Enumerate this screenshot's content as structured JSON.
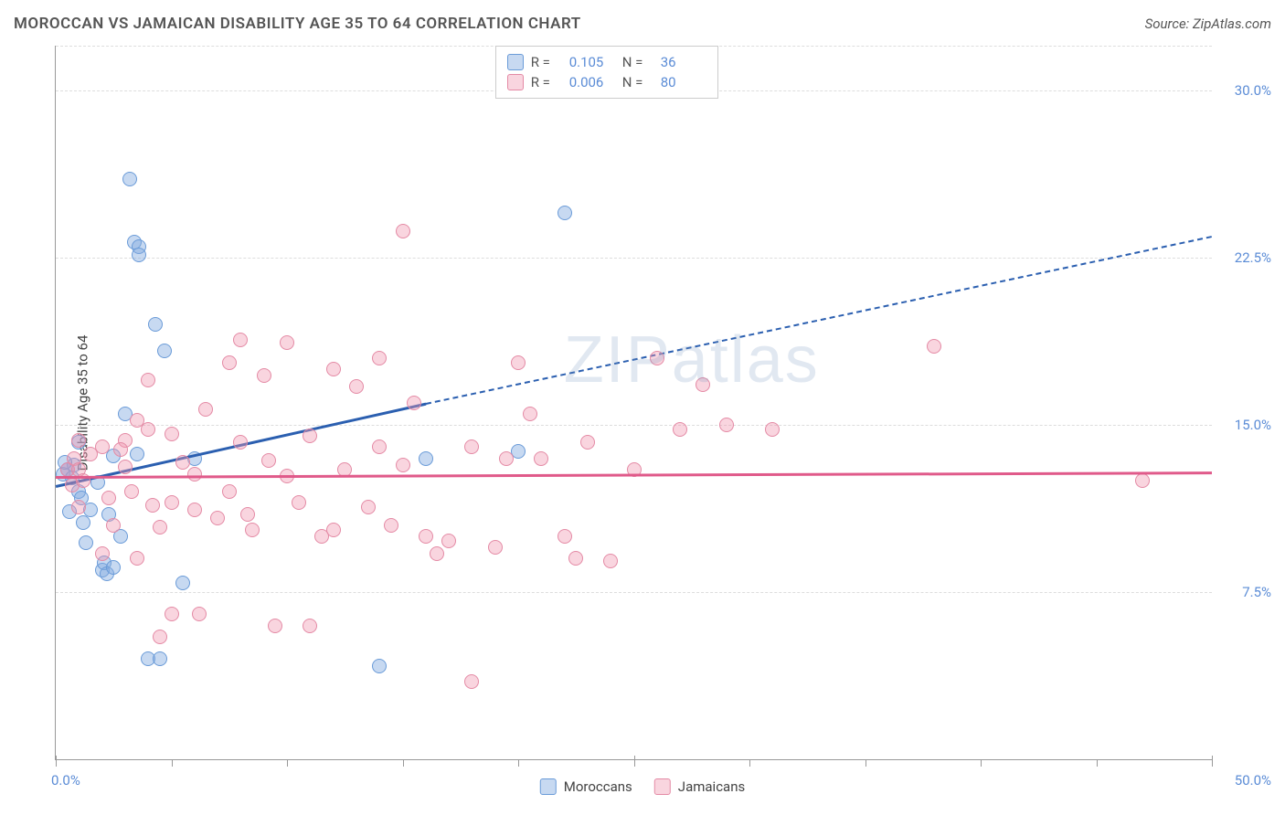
{
  "header": {
    "title": "MOROCCAN VS JAMAICAN DISABILITY AGE 35 TO 64 CORRELATION CHART",
    "source": "Source: ZipAtlas.com"
  },
  "watermark": "ZIPatlas",
  "chart": {
    "type": "scatter",
    "ylabel": "Disability Age 35 to 64",
    "xlim": [
      0,
      50
    ],
    "ylim": [
      0,
      32
    ],
    "background_color": "#ffffff",
    "grid_color": "#dddddd",
    "axis_color": "#999999",
    "yticks": [
      {
        "value": 7.5,
        "label": "7.5%"
      },
      {
        "value": 15.0,
        "label": "15.0%"
      },
      {
        "value": 22.5,
        "label": "22.5%"
      },
      {
        "value": 30.0,
        "label": "30.0%"
      }
    ],
    "xticks_major": [
      0,
      25,
      50
    ],
    "xticks_minor": [
      5,
      10,
      15,
      20,
      30,
      35,
      40,
      45
    ],
    "xtick_label_left": "0.0%",
    "xtick_label_right": "50.0%",
    "label_fontsize": 15,
    "tick_color": "#5b8cd6",
    "point_radius": 8,
    "series": [
      {
        "name": "Moroccans",
        "fill_color": "rgba(130,170,225,0.45)",
        "stroke_color": "#6a9bd8",
        "line_color": "#2b5fb0",
        "R": "0.105",
        "N": "36",
        "regression": {
          "x1": 0,
          "y1": 12.3,
          "x2_solid": 16,
          "y2_solid": 16.0,
          "x2_dash": 50,
          "y2_dash": 23.5
        },
        "points": [
          [
            0.3,
            12.8
          ],
          [
            0.5,
            13.0
          ],
          [
            0.6,
            11.1
          ],
          [
            0.7,
            12.6
          ],
          [
            0.8,
            13.2
          ],
          [
            1.0,
            14.2
          ],
          [
            1.0,
            12.0
          ],
          [
            1.1,
            11.7
          ],
          [
            1.2,
            10.6
          ],
          [
            1.5,
            11.2
          ],
          [
            2.0,
            8.5
          ],
          [
            2.1,
            8.8
          ],
          [
            2.2,
            8.3
          ],
          [
            2.5,
            8.6
          ],
          [
            2.3,
            11.0
          ],
          [
            2.5,
            13.6
          ],
          [
            3.0,
            15.5
          ],
          [
            3.2,
            26.0
          ],
          [
            3.4,
            23.2
          ],
          [
            3.6,
            23.0
          ],
          [
            3.6,
            22.6
          ],
          [
            3.5,
            13.7
          ],
          [
            4.0,
            4.5
          ],
          [
            4.3,
            19.5
          ],
          [
            4.5,
            4.5
          ],
          [
            4.7,
            18.3
          ],
          [
            5.5,
            7.9
          ],
          [
            6.0,
            13.5
          ],
          [
            14.0,
            4.2
          ],
          [
            16.0,
            13.5
          ],
          [
            20.0,
            13.8
          ],
          [
            22.0,
            24.5
          ],
          [
            0.4,
            13.3
          ],
          [
            1.3,
            9.7
          ],
          [
            2.8,
            10.0
          ],
          [
            1.8,
            12.4
          ]
        ]
      },
      {
        "name": "Jamaicans",
        "fill_color": "rgba(240,150,175,0.40)",
        "stroke_color": "#e48aa5",
        "line_color": "#e05a8a",
        "R": "0.006",
        "N": "80",
        "regression": {
          "x1": 0,
          "y1": 12.7,
          "x2_solid": 50,
          "y2_solid": 12.9,
          "x2_dash": 50,
          "y2_dash": 12.9
        },
        "points": [
          [
            0.5,
            13.0
          ],
          [
            0.7,
            12.3
          ],
          [
            0.8,
            13.5
          ],
          [
            1.0,
            14.3
          ],
          [
            1.0,
            13.0
          ],
          [
            1.2,
            12.5
          ],
          [
            1.5,
            13.7
          ],
          [
            2.0,
            14.0
          ],
          [
            2.3,
            11.7
          ],
          [
            2.5,
            10.5
          ],
          [
            3.0,
            14.3
          ],
          [
            3.0,
            13.1
          ],
          [
            3.3,
            12.0
          ],
          [
            3.5,
            15.2
          ],
          [
            4.0,
            14.8
          ],
          [
            4.2,
            11.4
          ],
          [
            4.5,
            10.4
          ],
          [
            5.0,
            11.5
          ],
          [
            5.0,
            14.6
          ],
          [
            5.5,
            13.3
          ],
          [
            6.0,
            12.8
          ],
          [
            6.0,
            11.2
          ],
          [
            6.5,
            15.7
          ],
          [
            7.0,
            10.8
          ],
          [
            7.5,
            12.0
          ],
          [
            8.0,
            18.8
          ],
          [
            8.0,
            14.2
          ],
          [
            8.3,
            11.0
          ],
          [
            8.5,
            10.3
          ],
          [
            9.0,
            17.2
          ],
          [
            9.2,
            13.4
          ],
          [
            9.5,
            6.0
          ],
          [
            10.0,
            12.7
          ],
          [
            10.0,
            18.7
          ],
          [
            10.5,
            11.5
          ],
          [
            11.0,
            14.5
          ],
          [
            11.5,
            10.0
          ],
          [
            12.0,
            17.5
          ],
          [
            12.0,
            10.3
          ],
          [
            12.5,
            13.0
          ],
          [
            13.0,
            16.7
          ],
          [
            13.5,
            11.3
          ],
          [
            14.0,
            18.0
          ],
          [
            14.0,
            14.0
          ],
          [
            14.5,
            10.5
          ],
          [
            15.0,
            23.7
          ],
          [
            15.0,
            13.2
          ],
          [
            15.5,
            16.0
          ],
          [
            16.0,
            10.0
          ],
          [
            16.5,
            9.2
          ],
          [
            17.0,
            9.8
          ],
          [
            18.0,
            14.0
          ],
          [
            18.0,
            3.5
          ],
          [
            19.0,
            9.5
          ],
          [
            19.5,
            13.5
          ],
          [
            20.0,
            17.8
          ],
          [
            20.5,
            15.5
          ],
          [
            21.0,
            13.5
          ],
          [
            22.0,
            10.0
          ],
          [
            22.5,
            9.0
          ],
          [
            23.0,
            14.2
          ],
          [
            24.0,
            8.9
          ],
          [
            25.0,
            13.0
          ],
          [
            26.0,
            18.0
          ],
          [
            27.0,
            14.8
          ],
          [
            28.0,
            16.8
          ],
          [
            29.0,
            15.0
          ],
          [
            31.0,
            14.8
          ],
          [
            38.0,
            18.5
          ],
          [
            47.0,
            12.5
          ],
          [
            4.5,
            5.5
          ],
          [
            5.0,
            6.5
          ],
          [
            3.5,
            9.0
          ],
          [
            6.2,
            6.5
          ],
          [
            1.0,
            11.3
          ],
          [
            2.0,
            9.2
          ],
          [
            2.8,
            13.9
          ],
          [
            7.5,
            17.8
          ],
          [
            4.0,
            17.0
          ],
          [
            11.0,
            6.0
          ]
        ]
      }
    ]
  },
  "legend": {
    "r_label": "R  =",
    "n_label": "N  ="
  },
  "bottom_legend": {
    "items": [
      "Moroccans",
      "Jamaicans"
    ]
  }
}
